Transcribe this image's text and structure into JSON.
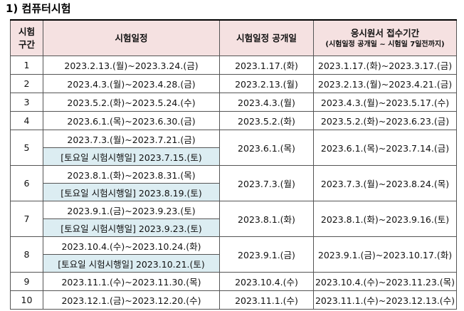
{
  "header": {
    "title": "1) 컴퓨터시험"
  },
  "table": {
    "columns": [
      [
        "시험",
        "구간"
      ],
      [
        "시험일정"
      ],
      [
        "시험일정 공개일"
      ],
      [
        "응시원서 접수기간",
        "(시험일정 공개일 ~ 시험일 7일전까지)"
      ]
    ],
    "rows": [
      {
        "no": "1",
        "schedule": "2023.2.13.(월)~2023.3.24.(금)",
        "announce": "2023.1.17.(화)",
        "period": "2023.1.17.(화)~2023.3.17.(금)"
      },
      {
        "no": "2",
        "schedule": "2023.4.3.(월)~2023.4.28.(금)",
        "announce": "2023.2.13.(월)",
        "period": "2023.2.13.(월)~2023.4.21.(금)"
      },
      {
        "no": "3",
        "schedule": "2023.5.2.(화)~2023.5.24.(수)",
        "announce": "2023.4.3.(월)",
        "period": "2023.4.3.(월)~2023.5.17.(수)"
      },
      {
        "no": "4",
        "schedule": "2023.6.1.(목)~2023.6.30.(금)",
        "announce": "2023.5.2.(화)",
        "period": "2023.5.2.(화)~2023.6.23.(금)"
      },
      {
        "no": "5",
        "schedule": "2023.7.3.(월)~2023.7.21.(금)",
        "saturday": "[토요일 시험시행일] 2023.7.15.(토)",
        "announce": "2023.6.1.(목)",
        "period": "2023.6.1.(목)~2023.7.14.(금)"
      },
      {
        "no": "6",
        "schedule": "2023.8.1.(화)~2023.8.31.(목)",
        "saturday": "[토요일 시험시행일] 2023.8.19.(토)",
        "announce": "2023.7.3.(월)",
        "period": "2023.7.3.(월)~2023.8.24.(목)"
      },
      {
        "no": "7",
        "schedule": "2023.9.1.(금)~2023.9.23.(토)",
        "saturday": "[토요일 시험시행일] 2023.9.23.(토)",
        "announce": "2023.8.1.(화)",
        "period": "2023.8.1.(화)~2023.9.16.(토)"
      },
      {
        "no": "8",
        "schedule": "2023.10.4.(수)~2023.10.24.(화)",
        "saturday": "[토요일 시험시행일] 2023.10.21.(토)",
        "announce": "2023.9.1.(금)",
        "period": "2023.9.1.(금)~2023.10.17.(화)"
      },
      {
        "no": "9",
        "schedule": "2023.11.1.(수)~2023.11.30.(목)",
        "announce": "2023.10.4.(수)",
        "period": "2023.10.4.(수)~2023.11.23.(목)"
      },
      {
        "no": "10",
        "schedule": "2023.12.1.(금)~2023.12.20.(수)",
        "announce": "2023.11.1.(수)",
        "period": "2023.11.1.(수)~2023.12.13.(수)"
      }
    ]
  }
}
